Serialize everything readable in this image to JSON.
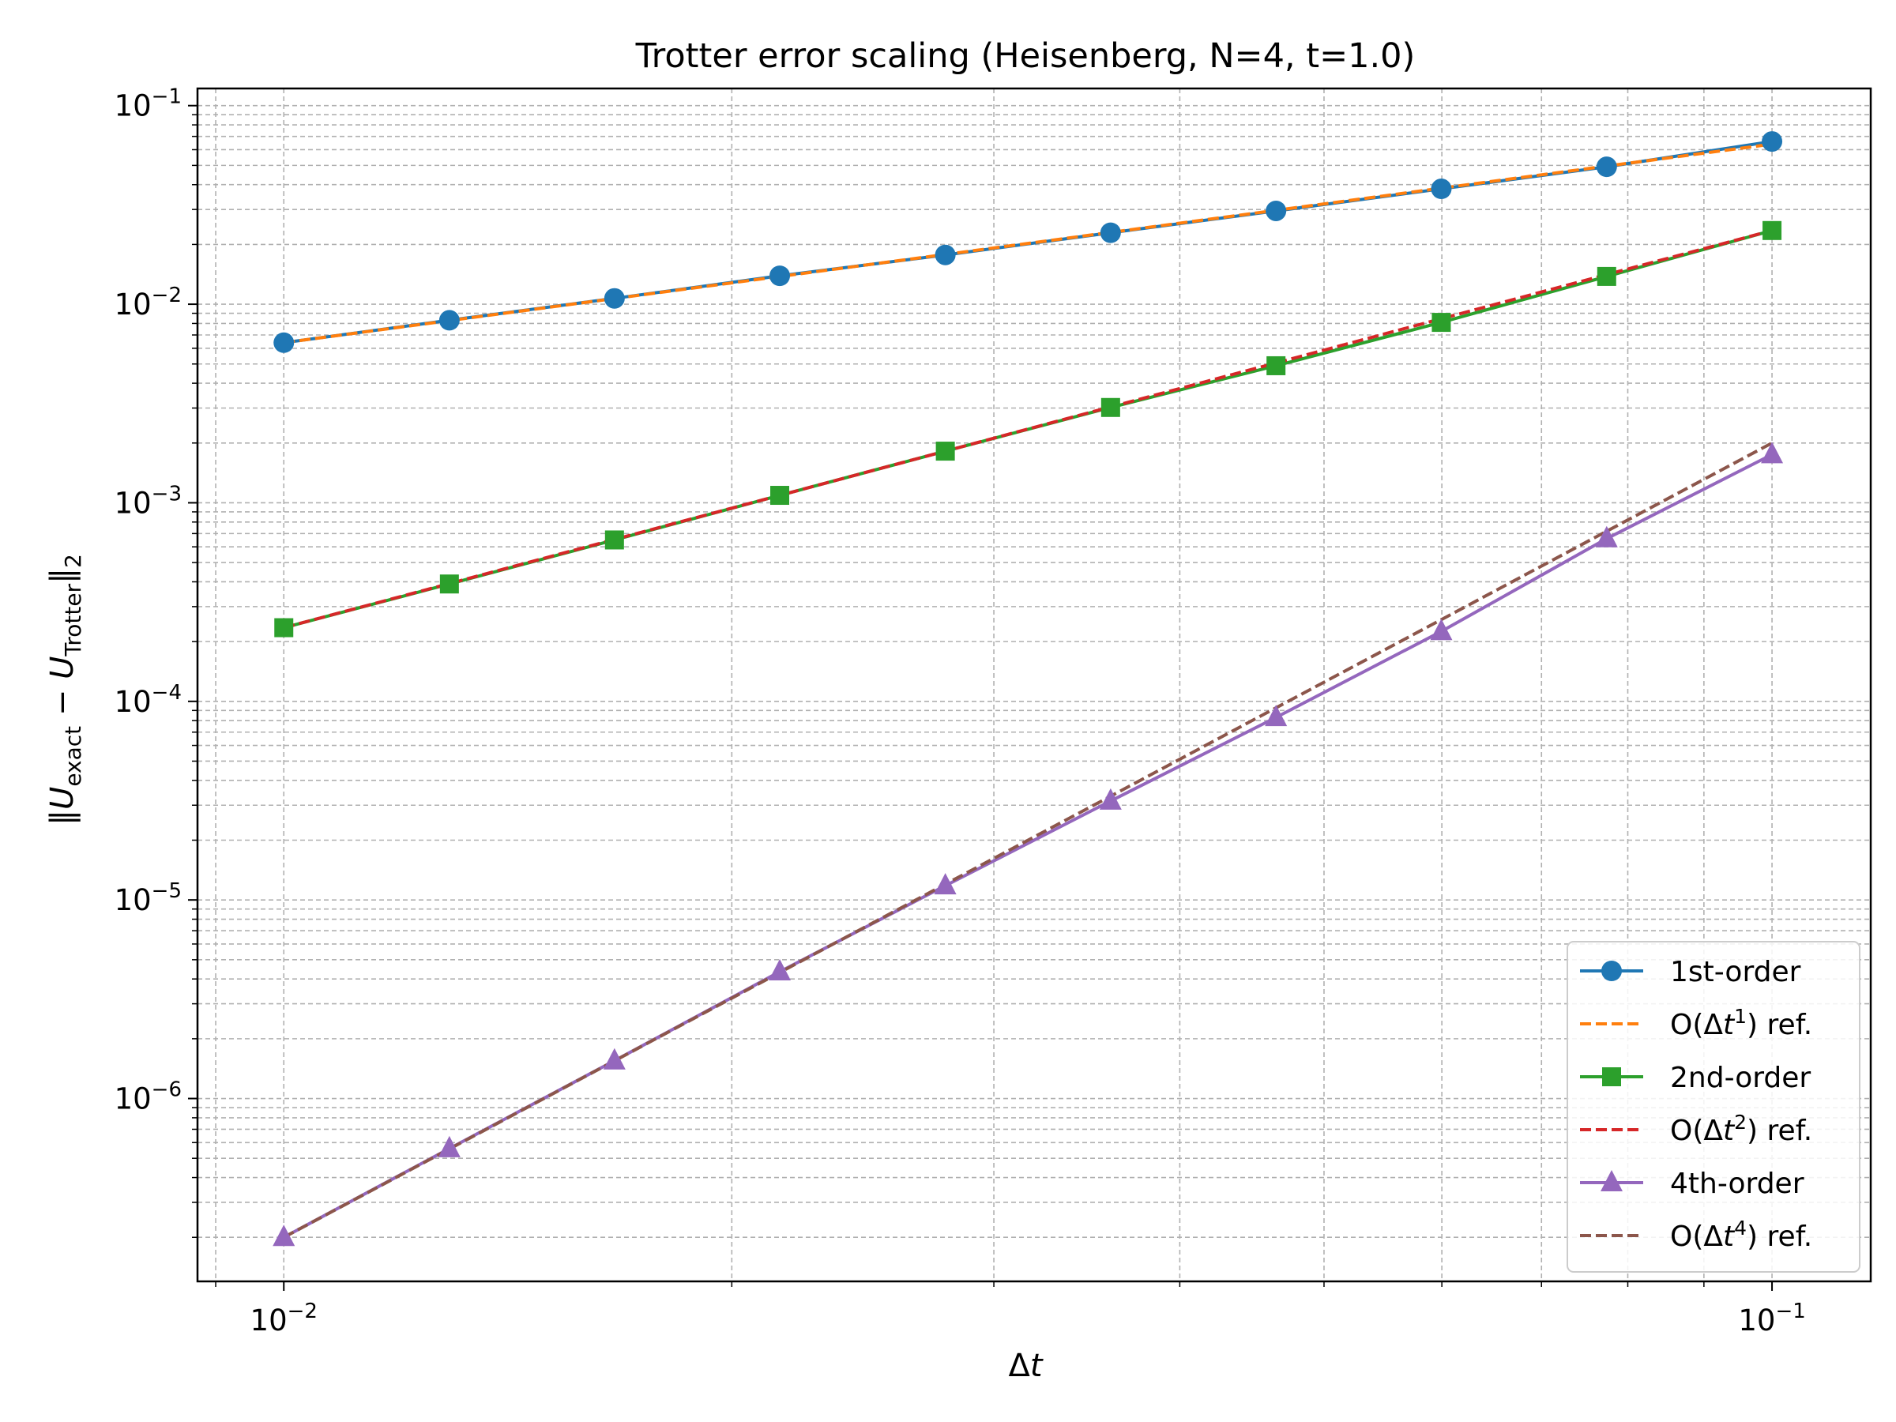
{
  "chart_data": {
    "type": "line",
    "title": "Trotter error scaling (Heisenberg, N=4, t=1.0)",
    "xlabel": "Δt",
    "ylabel": "‖U_exact − U_Trotter‖₂",
    "xscale": "log",
    "yscale": "log",
    "xlim": [
      0.00875,
      0.1165
    ],
    "ylim": [
      1.2e-07,
      0.122
    ],
    "grid": true,
    "legend_position": "lower right",
    "x": [
      0.01,
      0.01292,
      0.01668,
      0.02154,
      0.02783,
      0.03594,
      0.04642,
      0.05995,
      0.07743,
      0.1
    ],
    "x_ticks": [
      {
        "value": 0.01,
        "label": "10",
        "exp": "−2"
      },
      {
        "value": 0.1,
        "label": "10",
        "exp": "−1"
      }
    ],
    "y_ticks": [
      {
        "value": 1e-06,
        "label": "10",
        "exp": "−6"
      },
      {
        "value": 1e-05,
        "label": "10",
        "exp": "−5"
      },
      {
        "value": 0.0001,
        "label": "10",
        "exp": "−4"
      },
      {
        "value": 0.001,
        "label": "10",
        "exp": "−3"
      },
      {
        "value": 0.01,
        "label": "10",
        "exp": "−2"
      },
      {
        "value": 0.1,
        "label": "10",
        "exp": "−1"
      }
    ],
    "series": [
      {
        "name": "1st-order",
        "color": "#1f77b4",
        "style": "solid",
        "marker": "circle",
        "values": [
          0.0064,
          0.0083,
          0.0107,
          0.0139,
          0.0177,
          0.0229,
          0.0295,
          0.0381,
          0.0492,
          0.066
        ]
      },
      {
        "name": "O(Δt¹) ref.",
        "name_base": "O(Δ",
        "name_var": "t",
        "name_sup": "1",
        "name_tail": ") ref.",
        "color": "#ff7f0e",
        "style": "dashed",
        "marker": "none",
        "values": [
          0.0064,
          0.00827,
          0.01068,
          0.01379,
          0.01781,
          0.023,
          0.0297,
          0.0384,
          0.0496,
          0.064
        ]
      },
      {
        "name": "2nd-order",
        "color": "#2ca02c",
        "style": "solid",
        "marker": "square",
        "values": [
          0.000235,
          0.00039,
          0.00065,
          0.00109,
          0.00182,
          0.00302,
          0.0049,
          0.0081,
          0.0138,
          0.0235
        ]
      },
      {
        "name": "O(Δt²) ref.",
        "name_base": "O(Δ",
        "name_var": "t",
        "name_sup": "2",
        "name_tail": ") ref.",
        "color": "#d62728",
        "style": "dashed",
        "marker": "none",
        "values": [
          0.000235,
          0.000392,
          0.000654,
          0.00109,
          0.00182,
          0.00304,
          0.00506,
          0.00845,
          0.0141,
          0.0235
        ]
      },
      {
        "name": "4th-order",
        "color": "#9467bd",
        "style": "solid",
        "marker": "triangle",
        "values": [
          2e-07,
          5.6e-07,
          1.55e-06,
          4.35e-06,
          1.18e-05,
          3.15e-05,
          8.3e-05,
          0.000225,
          0.00066,
          0.00175
        ]
      },
      {
        "name": "O(Δt⁴) ref.",
        "name_base": "O(Δ",
        "name_var": "t",
        "name_sup": "4",
        "name_tail": ") ref.",
        "color": "#8c564b",
        "style": "dashed",
        "marker": "none",
        "values": [
          2e-07,
          5.57e-07,
          1.548e-06,
          4.31e-06,
          1.2e-05,
          3.33e-05,
          9.28e-05,
          0.000258,
          0.000719,
          0.002
        ]
      }
    ]
  }
}
